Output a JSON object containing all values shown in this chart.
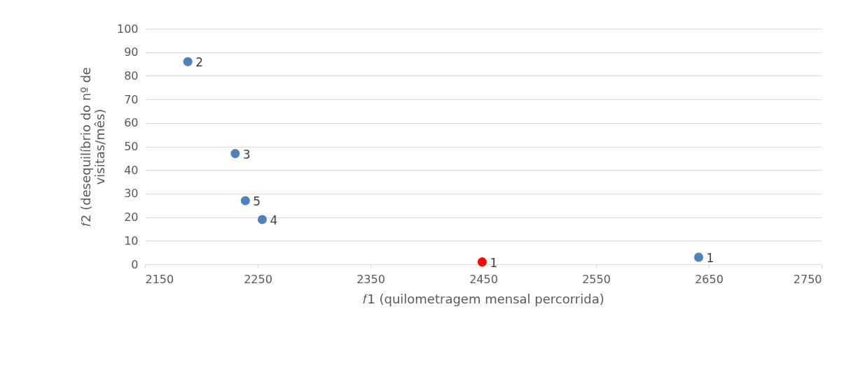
{
  "chart_data": {
    "type": "scatter",
    "xlabel": "𝑓1 (quilometragem mensal percorrida)",
    "ylabel": "𝑓2 (desequilíbrio do nº de visitas/mês)",
    "series": [
      {
        "color": "#4f81bd",
        "x": [
          2188,
          2230,
          2239,
          2254,
          2641
        ],
        "values": [
          86,
          47,
          27,
          19,
          3
        ]
      },
      {
        "color": "#ff0000",
        "x": [
          2449
        ],
        "values": [
          1
        ]
      }
    ],
    "annotations": [
      {
        "text": "2",
        "x": 2188,
        "y": 86
      },
      {
        "text": "3",
        "x": 2230,
        "y": 47
      },
      {
        "text": "5",
        "x": 2239,
        "y": 27
      },
      {
        "text": "4",
        "x": 2254,
        "y": 19
      },
      {
        "text": "1",
        "x": 2449,
        "y": 1
      },
      {
        "text": "1",
        "x": 2641,
        "y": 3
      }
    ],
    "xlim": [
      2150,
      2750
    ],
    "xticks": [
      2150,
      2250,
      2350,
      2450,
      2550,
      2650,
      2750
    ],
    "ylim": [
      0,
      100
    ],
    "yticks": [
      0,
      10,
      20,
      30,
      40,
      50,
      60,
      70,
      80,
      90,
      100
    ],
    "grid": "y",
    "marker": "circle",
    "legend": false
  }
}
